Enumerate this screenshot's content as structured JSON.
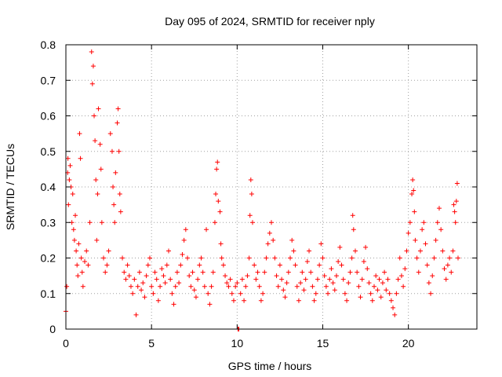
{
  "chart_data": {
    "type": "scatter",
    "title": "Day 095 of 2024, SRMTID for receiver nply",
    "xlabel": "GPS time / hours",
    "ylabel": "SRMTID / TECUs",
    "xlim": [
      0,
      24
    ],
    "ylim": [
      0,
      0.8
    ],
    "xticks": [
      0,
      5,
      10,
      15,
      20
    ],
    "yticks": [
      0,
      0.1,
      0.2,
      0.3,
      0.4,
      0.5,
      0.6,
      0.7,
      0.8
    ],
    "xtick_labels": [
      "0",
      "5",
      "10",
      "15",
      "20"
    ],
    "ytick_labels": [
      "0",
      "0.1",
      "0.2",
      "0.3",
      "0.4",
      "0.5",
      "0.6",
      "0.7",
      "0.8"
    ],
    "grid": true,
    "marker": "+",
    "series_color": "#ff0000",
    "series": [
      {
        "name": "nply",
        "points": [
          [
            0.0,
            0.05
          ],
          [
            0.05,
            0.12
          ],
          [
            0.1,
            0.44
          ],
          [
            0.12,
            0.48
          ],
          [
            0.15,
            0.35
          ],
          [
            0.2,
            0.42
          ],
          [
            0.25,
            0.46
          ],
          [
            0.3,
            0.4
          ],
          [
            0.35,
            0.3
          ],
          [
            0.4,
            0.38
          ],
          [
            0.45,
            0.28
          ],
          [
            0.5,
            0.25
          ],
          [
            0.55,
            0.32
          ],
          [
            0.6,
            0.22
          ],
          [
            0.65,
            0.18
          ],
          [
            0.7,
            0.15
          ],
          [
            0.75,
            0.24
          ],
          [
            0.8,
            0.55
          ],
          [
            0.85,
            0.48
          ],
          [
            0.9,
            0.2
          ],
          [
            0.95,
            0.16
          ],
          [
            1.0,
            0.12
          ],
          [
            1.1,
            0.19
          ],
          [
            1.2,
            0.22
          ],
          [
            1.3,
            0.18
          ],
          [
            1.4,
            0.3
          ],
          [
            1.5,
            0.78
          ],
          [
            1.55,
            0.69
          ],
          [
            1.6,
            0.74
          ],
          [
            1.65,
            0.6
          ],
          [
            1.7,
            0.53
          ],
          [
            1.75,
            0.42
          ],
          [
            1.8,
            0.25
          ],
          [
            1.85,
            0.38
          ],
          [
            1.9,
            0.62
          ],
          [
            2.0,
            0.52
          ],
          [
            2.05,
            0.45
          ],
          [
            2.1,
            0.3
          ],
          [
            2.2,
            0.2
          ],
          [
            2.3,
            0.16
          ],
          [
            2.4,
            0.18
          ],
          [
            2.5,
            0.22
          ],
          [
            2.6,
            0.55
          ],
          [
            2.7,
            0.5
          ],
          [
            2.75,
            0.4
          ],
          [
            2.8,
            0.35
          ],
          [
            2.85,
            0.3
          ],
          [
            2.9,
            0.44
          ],
          [
            3.0,
            0.58
          ],
          [
            3.05,
            0.62
          ],
          [
            3.1,
            0.5
          ],
          [
            3.15,
            0.38
          ],
          [
            3.2,
            0.33
          ],
          [
            3.3,
            0.2
          ],
          [
            3.4,
            0.16
          ],
          [
            3.5,
            0.14
          ],
          [
            3.6,
            0.18
          ],
          [
            3.7,
            0.15
          ],
          [
            3.8,
            0.12
          ],
          [
            3.9,
            0.1
          ],
          [
            4.0,
            0.14
          ],
          [
            4.1,
            0.04
          ],
          [
            4.2,
            0.12
          ],
          [
            4.3,
            0.16
          ],
          [
            4.4,
            0.11
          ],
          [
            4.5,
            0.13
          ],
          [
            4.6,
            0.09
          ],
          [
            4.7,
            0.15
          ],
          [
            4.8,
            0.18
          ],
          [
            4.9,
            0.2
          ],
          [
            5.0,
            0.12
          ],
          [
            5.1,
            0.1
          ],
          [
            5.2,
            0.16
          ],
          [
            5.3,
            0.14
          ],
          [
            5.4,
            0.08
          ],
          [
            5.5,
            0.12
          ],
          [
            5.6,
            0.17
          ],
          [
            5.7,
            0.15
          ],
          [
            5.8,
            0.13
          ],
          [
            5.9,
            0.18
          ],
          [
            6.0,
            0.22
          ],
          [
            6.1,
            0.14
          ],
          [
            6.2,
            0.1
          ],
          [
            6.3,
            0.07
          ],
          [
            6.4,
            0.12
          ],
          [
            6.5,
            0.16
          ],
          [
            6.6,
            0.13
          ],
          [
            6.7,
            0.18
          ],
          [
            6.8,
            0.21
          ],
          [
            6.9,
            0.25
          ],
          [
            7.0,
            0.28
          ],
          [
            7.1,
            0.2
          ],
          [
            7.2,
            0.15
          ],
          [
            7.3,
            0.12
          ],
          [
            7.4,
            0.16
          ],
          [
            7.5,
            0.11
          ],
          [
            7.6,
            0.09
          ],
          [
            7.7,
            0.14
          ],
          [
            7.8,
            0.18
          ],
          [
            7.9,
            0.2
          ],
          [
            8.0,
            0.16
          ],
          [
            8.1,
            0.12
          ],
          [
            8.2,
            0.28
          ],
          [
            8.3,
            0.1
          ],
          [
            8.4,
            0.07
          ],
          [
            8.5,
            0.12
          ],
          [
            8.6,
            0.16
          ],
          [
            8.7,
            0.3
          ],
          [
            8.75,
            0.38
          ],
          [
            8.8,
            0.45
          ],
          [
            8.85,
            0.47
          ],
          [
            8.9,
            0.36
          ],
          [
            9.0,
            0.33
          ],
          [
            9.05,
            0.24
          ],
          [
            9.1,
            0.2
          ],
          [
            9.2,
            0.18
          ],
          [
            9.3,
            0.15
          ],
          [
            9.4,
            0.13
          ],
          [
            9.5,
            0.12
          ],
          [
            9.6,
            0.14
          ],
          [
            9.7,
            0.1
          ],
          [
            9.8,
            0.08
          ],
          [
            9.9,
            0.12
          ],
          [
            10.0,
            0.13
          ],
          [
            10.05,
            0.0
          ],
          [
            10.1,
            0.0
          ],
          [
            10.2,
            0.1
          ],
          [
            10.3,
            0.14
          ],
          [
            10.4,
            0.08
          ],
          [
            10.5,
            0.12
          ],
          [
            10.6,
            0.15
          ],
          [
            10.7,
            0.2
          ],
          [
            10.75,
            0.32
          ],
          [
            10.8,
            0.42
          ],
          [
            10.85,
            0.38
          ],
          [
            10.9,
            0.3
          ],
          [
            11.0,
            0.18
          ],
          [
            11.1,
            0.14
          ],
          [
            11.2,
            0.16
          ],
          [
            11.3,
            0.12
          ],
          [
            11.4,
            0.08
          ],
          [
            11.5,
            0.1
          ],
          [
            11.6,
            0.16
          ],
          [
            11.7,
            0.2
          ],
          [
            11.8,
            0.24
          ],
          [
            11.9,
            0.27
          ],
          [
            12.0,
            0.3
          ],
          [
            12.1,
            0.25
          ],
          [
            12.2,
            0.2
          ],
          [
            12.3,
            0.15
          ],
          [
            12.4,
            0.12
          ],
          [
            12.5,
            0.18
          ],
          [
            12.6,
            0.14
          ],
          [
            12.7,
            0.11
          ],
          [
            12.8,
            0.09
          ],
          [
            12.9,
            0.13
          ],
          [
            13.0,
            0.16
          ],
          [
            13.1,
            0.2
          ],
          [
            13.2,
            0.25
          ],
          [
            13.3,
            0.22
          ],
          [
            13.4,
            0.18
          ],
          [
            13.5,
            0.12
          ],
          [
            13.6,
            0.08
          ],
          [
            13.7,
            0.13
          ],
          [
            13.8,
            0.16
          ],
          [
            13.9,
            0.11
          ],
          [
            14.0,
            0.14
          ],
          [
            14.1,
            0.19
          ],
          [
            14.2,
            0.22
          ],
          [
            14.3,
            0.16
          ],
          [
            14.4,
            0.12
          ],
          [
            14.5,
            0.08
          ],
          [
            14.6,
            0.1
          ],
          [
            14.7,
            0.14
          ],
          [
            14.8,
            0.18
          ],
          [
            14.9,
            0.24
          ],
          [
            15.0,
            0.2
          ],
          [
            15.1,
            0.15
          ],
          [
            15.2,
            0.12
          ],
          [
            15.3,
            0.1
          ],
          [
            15.4,
            0.14
          ],
          [
            15.5,
            0.17
          ],
          [
            15.6,
            0.13
          ],
          [
            15.7,
            0.11
          ],
          [
            15.8,
            0.15
          ],
          [
            15.9,
            0.19
          ],
          [
            16.0,
            0.23
          ],
          [
            16.1,
            0.18
          ],
          [
            16.2,
            0.14
          ],
          [
            16.3,
            0.1
          ],
          [
            16.4,
            0.08
          ],
          [
            16.5,
            0.13
          ],
          [
            16.6,
            0.16
          ],
          [
            16.7,
            0.2
          ],
          [
            16.75,
            0.32
          ],
          [
            16.8,
            0.28
          ],
          [
            16.9,
            0.22
          ],
          [
            17.0,
            0.16
          ],
          [
            17.1,
            0.12
          ],
          [
            17.2,
            0.09
          ],
          [
            17.3,
            0.14
          ],
          [
            17.4,
            0.19
          ],
          [
            17.5,
            0.23
          ],
          [
            17.6,
            0.17
          ],
          [
            17.7,
            0.13
          ],
          [
            17.8,
            0.1
          ],
          [
            17.9,
            0.08
          ],
          [
            18.0,
            0.12
          ],
          [
            18.1,
            0.15
          ],
          [
            18.2,
            0.11
          ],
          [
            18.3,
            0.14
          ],
          [
            18.4,
            0.09
          ],
          [
            18.5,
            0.13
          ],
          [
            18.6,
            0.16
          ],
          [
            18.7,
            0.11
          ],
          [
            18.8,
            0.14
          ],
          [
            18.9,
            0.1
          ],
          [
            19.0,
            0.08
          ],
          [
            19.1,
            0.06
          ],
          [
            19.2,
            0.04
          ],
          [
            19.3,
            0.1
          ],
          [
            19.4,
            0.14
          ],
          [
            19.5,
            0.2
          ],
          [
            19.6,
            0.15
          ],
          [
            19.7,
            0.12
          ],
          [
            19.8,
            0.17
          ],
          [
            19.9,
            0.22
          ],
          [
            20.0,
            0.27
          ],
          [
            20.1,
            0.3
          ],
          [
            20.2,
            0.38
          ],
          [
            20.25,
            0.42
          ],
          [
            20.3,
            0.39
          ],
          [
            20.35,
            0.33
          ],
          [
            20.4,
            0.25
          ],
          [
            20.5,
            0.2
          ],
          [
            20.6,
            0.16
          ],
          [
            20.7,
            0.22
          ],
          [
            20.8,
            0.28
          ],
          [
            20.9,
            0.3
          ],
          [
            21.0,
            0.24
          ],
          [
            21.1,
            0.18
          ],
          [
            21.2,
            0.13
          ],
          [
            21.3,
            0.1
          ],
          [
            21.4,
            0.15
          ],
          [
            21.5,
            0.2
          ],
          [
            21.6,
            0.25
          ],
          [
            21.7,
            0.3
          ],
          [
            21.8,
            0.34
          ],
          [
            21.9,
            0.28
          ],
          [
            22.0,
            0.22
          ],
          [
            22.1,
            0.17
          ],
          [
            22.2,
            0.14
          ],
          [
            22.3,
            0.18
          ],
          [
            22.4,
            0.2
          ],
          [
            22.5,
            0.16
          ],
          [
            22.6,
            0.22
          ],
          [
            22.65,
            0.35
          ],
          [
            22.7,
            0.33
          ],
          [
            22.75,
            0.3
          ],
          [
            22.8,
            0.36
          ],
          [
            22.85,
            0.41
          ],
          [
            22.9,
            0.2
          ]
        ]
      }
    ]
  }
}
